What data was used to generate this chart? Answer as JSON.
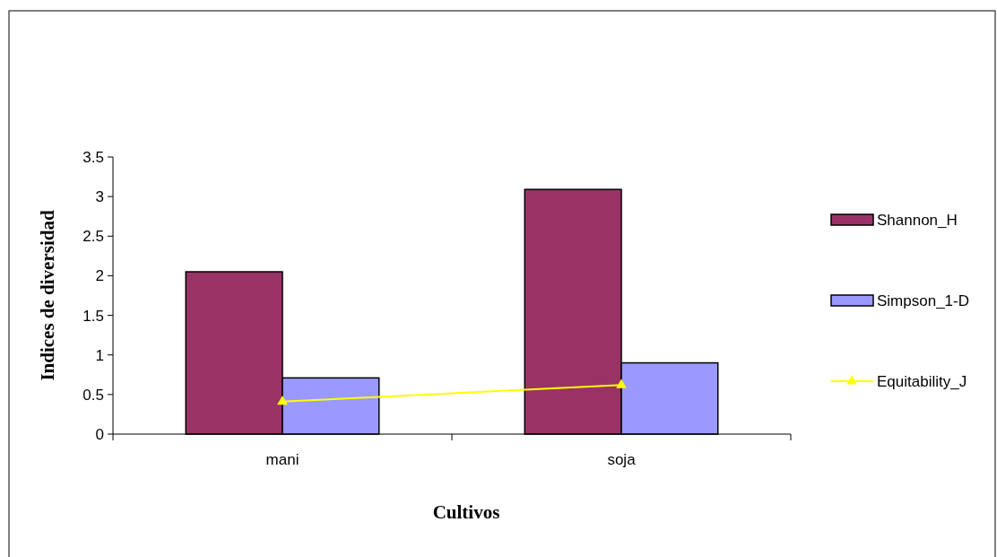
{
  "chart_data": {
    "type": "bar",
    "xlabel": "Cultivos",
    "ylabel": "Indices de diversidad",
    "categories": [
      "mani",
      "soja"
    ],
    "series": [
      {
        "name": "Shannon_H",
        "color": "#993366",
        "values": [
          2.05,
          3.09
        ]
      },
      {
        "name": "Simpson_1-D",
        "color": "#9999ff",
        "values": [
          0.71,
          0.9
        ]
      },
      {
        "name": "Equitability_J",
        "type": "line",
        "color": "#ffff00",
        "marker": "triangle",
        "values": [
          0.41,
          0.62
        ]
      }
    ],
    "ylim": [
      0,
      3.5
    ],
    "yticks": [
      0,
      0.5,
      1,
      1.5,
      2,
      2.5,
      3,
      3.5
    ],
    "legend": "right",
    "grid": false
  }
}
